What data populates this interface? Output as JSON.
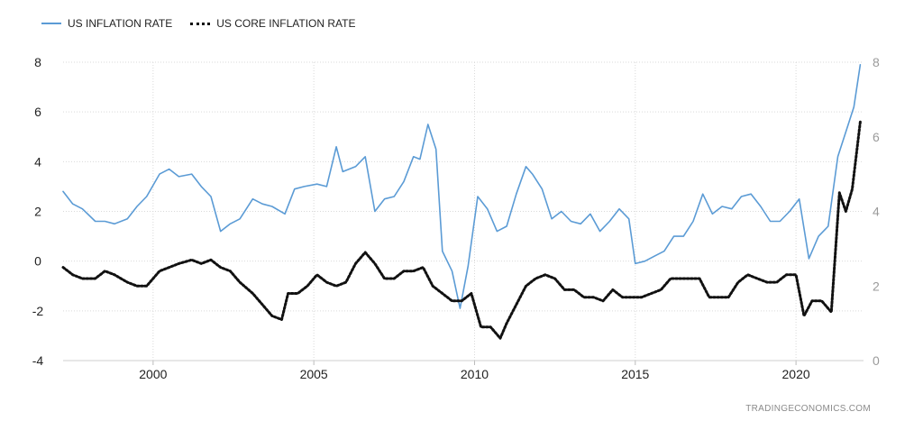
{
  "legend": {
    "series1": "US INFLATION RATE",
    "series2": "US CORE INFLATION RATE"
  },
  "source": "TRADINGECONOMICS.COM",
  "colors": {
    "series1": "#5b9bd5",
    "series2": "#111111",
    "grid": "#d9d9d9",
    "right_axis_text": "#9a9a9a"
  },
  "chart_data": {
    "type": "line",
    "title": "",
    "x_ticks": [
      2000,
      2005,
      2010,
      2015,
      2020
    ],
    "xlim": [
      1997.2,
      2022.1
    ],
    "y_left": {
      "ticks": [
        8,
        6,
        4,
        2,
        0,
        -2,
        -4
      ],
      "lim": [
        -4,
        8
      ]
    },
    "y_right": {
      "ticks": [
        8,
        6,
        4,
        2,
        0
      ],
      "lim": [
        0,
        8
      ]
    },
    "grid": true,
    "legend_position": "top-left",
    "series": [
      {
        "name": "US INFLATION RATE",
        "axis": "left",
        "x": [
          1997.2,
          1997.5,
          1997.8,
          1998.2,
          1998.5,
          1998.8,
          1999.2,
          1999.5,
          1999.8,
          2000.2,
          2000.5,
          2000.8,
          2001.2,
          2001.5,
          2001.8,
          2002.1,
          2002.4,
          2002.7,
          2003.1,
          2003.4,
          2003.7,
          2004.1,
          2004.4,
          2004.7,
          2005.1,
          2005.4,
          2005.7,
          2005.9,
          2006.3,
          2006.6,
          2006.9,
          2007.2,
          2007.5,
          2007.8,
          2008.1,
          2008.3,
          2008.55,
          2008.8,
          2009.0,
          2009.3,
          2009.55,
          2009.8,
          2010.1,
          2010.4,
          2010.7,
          2011.0,
          2011.3,
          2011.6,
          2011.8,
          2012.1,
          2012.4,
          2012.7,
          2013.0,
          2013.3,
          2013.6,
          2013.9,
          2014.2,
          2014.5,
          2014.8,
          2015.0,
          2015.3,
          2015.6,
          2015.9,
          2016.2,
          2016.5,
          2016.8,
          2017.1,
          2017.4,
          2017.7,
          2018.0,
          2018.3,
          2018.6,
          2018.9,
          2019.2,
          2019.5,
          2019.8,
          2020.1,
          2020.4,
          2020.7,
          2021.0,
          2021.3,
          2021.6,
          2021.8,
          2022.0
        ],
        "y": [
          2.8,
          2.3,
          2.1,
          1.6,
          1.6,
          1.5,
          1.7,
          2.2,
          2.6,
          3.5,
          3.7,
          3.4,
          3.5,
          3.0,
          2.6,
          1.2,
          1.5,
          1.7,
          2.5,
          2.3,
          2.2,
          1.9,
          2.9,
          3.0,
          3.1,
          3.0,
          4.6,
          3.6,
          3.8,
          4.2,
          2.0,
          2.5,
          2.6,
          3.2,
          4.2,
          4.1,
          5.5,
          4.5,
          0.4,
          -0.4,
          -1.9,
          -0.2,
          2.6,
          2.1,
          1.2,
          1.4,
          2.7,
          3.8,
          3.5,
          2.9,
          1.7,
          2.0,
          1.6,
          1.5,
          1.9,
          1.2,
          1.6,
          2.1,
          1.7,
          -0.1,
          0.0,
          0.2,
          0.4,
          1.0,
          1.0,
          1.6,
          2.7,
          1.9,
          2.2,
          2.1,
          2.6,
          2.7,
          2.2,
          1.6,
          1.6,
          2.0,
          2.5,
          0.1,
          1.0,
          1.4,
          4.2,
          5.4,
          6.2,
          7.9
        ]
      },
      {
        "name": "US CORE INFLATION RATE",
        "axis": "right",
        "x": [
          1997.2,
          1997.5,
          1997.8,
          1998.2,
          1998.5,
          1998.8,
          1999.2,
          1999.5,
          1999.8,
          2000.2,
          2000.5,
          2000.8,
          2001.2,
          2001.5,
          2001.8,
          2002.1,
          2002.4,
          2002.7,
          2003.1,
          2003.4,
          2003.7,
          2004.0,
          2004.2,
          2004.5,
          2004.8,
          2005.1,
          2005.4,
          2005.7,
          2006.0,
          2006.3,
          2006.6,
          2006.9,
          2007.2,
          2007.5,
          2007.8,
          2008.1,
          2008.4,
          2008.7,
          2009.0,
          2009.3,
          2009.6,
          2009.9,
          2010.2,
          2010.5,
          2010.8,
          2011.0,
          2011.3,
          2011.6,
          2011.9,
          2012.2,
          2012.5,
          2012.8,
          2013.1,
          2013.4,
          2013.7,
          2014.0,
          2014.3,
          2014.6,
          2014.9,
          2015.2,
          2015.5,
          2015.8,
          2016.1,
          2016.4,
          2016.7,
          2017.0,
          2017.3,
          2017.6,
          2017.9,
          2018.2,
          2018.5,
          2018.8,
          2019.1,
          2019.4,
          2019.7,
          2020.0,
          2020.25,
          2020.5,
          2020.8,
          2021.1,
          2021.35,
          2021.55,
          2021.75,
          2022.0
        ],
        "y": [
          2.5,
          2.3,
          2.2,
          2.2,
          2.4,
          2.3,
          2.1,
          2.0,
          2.0,
          2.4,
          2.5,
          2.6,
          2.7,
          2.6,
          2.7,
          2.5,
          2.4,
          2.1,
          1.8,
          1.5,
          1.2,
          1.1,
          1.8,
          1.8,
          2.0,
          2.3,
          2.1,
          2.0,
          2.1,
          2.6,
          2.9,
          2.6,
          2.2,
          2.2,
          2.4,
          2.4,
          2.5,
          2.0,
          1.8,
          1.6,
          1.6,
          1.8,
          0.9,
          0.9,
          0.6,
          1.0,
          1.5,
          2.0,
          2.2,
          2.3,
          2.2,
          1.9,
          1.9,
          1.7,
          1.7,
          1.6,
          1.9,
          1.7,
          1.7,
          1.7,
          1.8,
          1.9,
          2.2,
          2.2,
          2.2,
          2.2,
          1.7,
          1.7,
          1.7,
          2.1,
          2.3,
          2.2,
          2.1,
          2.1,
          2.3,
          2.3,
          1.2,
          1.6,
          1.6,
          1.3,
          4.5,
          4.0,
          4.6,
          6.4
        ]
      }
    ]
  }
}
